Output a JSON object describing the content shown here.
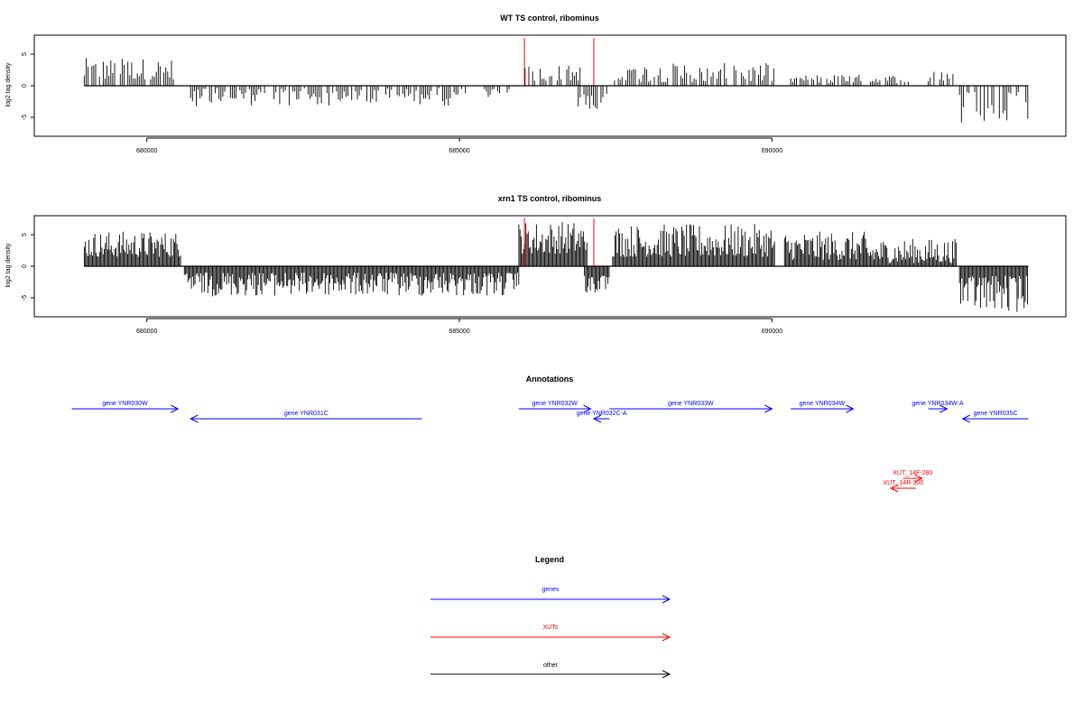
{
  "chart_data": [
    {
      "type": "bar",
      "title": "WT TS control, ribominus",
      "xlabel": "",
      "ylabel": "log2 tag density",
      "xlim": [
        678200,
        694700
      ],
      "ylim": [
        -8,
        8
      ],
      "xticks": [
        680000,
        685000,
        690000
      ],
      "xtick_labels": [
        "680000",
        "685000",
        "690000"
      ],
      "yticks": [
        -5,
        0,
        5
      ],
      "ytick_labels": [
        "-5",
        "0",
        "5"
      ],
      "marker_lines": {
        "x": [
          686040,
          687150
        ],
        "color": "#ff0000"
      },
      "segments": [
        {
          "x0": 679000,
          "x1": 680450,
          "strand": "+",
          "min": 1.0,
          "max": 4.4
        },
        {
          "x0": 680700,
          "x1": 685100,
          "strand": "-",
          "min": 0.4,
          "max": 3.2
        },
        {
          "x0": 685400,
          "x1": 685950,
          "strand": "-",
          "min": 0.5,
          "max": 1.8
        },
        {
          "x0": 686050,
          "x1": 686950,
          "strand": "+",
          "min": 0.8,
          "max": 3.3
        },
        {
          "x0": 686900,
          "x1": 687400,
          "strand": "-",
          "min": 0.8,
          "max": 3.8
        },
        {
          "x0": 687450,
          "x1": 690050,
          "strand": "+",
          "min": 0.6,
          "max": 3.6
        },
        {
          "x0": 690300,
          "x1": 692200,
          "strand": "+",
          "min": 0.4,
          "max": 1.8
        },
        {
          "x0": 692500,
          "x1": 692920,
          "strand": "+",
          "min": 0.6,
          "max": 3.2
        },
        {
          "x0": 693000,
          "x1": 694100,
          "strand": "-",
          "min": 1.0,
          "max": 6.3
        }
      ]
    },
    {
      "type": "bar",
      "title": "xrn1 TS control, ribominus",
      "xlabel": "",
      "ylabel": "log2 tag density",
      "xlim": [
        678200,
        694700
      ],
      "ylim": [
        -8,
        8
      ],
      "xticks": [
        680000,
        685000,
        690000
      ],
      "xtick_labels": [
        "680000",
        "685000",
        "690000"
      ],
      "yticks": [
        -5,
        0,
        5
      ],
      "ytick_labels": [
        "-5",
        "0",
        "5"
      ],
      "marker_lines": {
        "x": [
          686040,
          687150
        ],
        "color": "#ff0000"
      },
      "segments": [
        {
          "x0": 679000,
          "x1": 680550,
          "strand": "+",
          "min": 1.5,
          "max": 5.6
        },
        {
          "x0": 680600,
          "x1": 685950,
          "strand": "-",
          "min": 1.0,
          "max": 4.8
        },
        {
          "x0": 685950,
          "x1": 687050,
          "strand": "+",
          "min": 2.0,
          "max": 7.2
        },
        {
          "x0": 687000,
          "x1": 687400,
          "strand": "-",
          "min": 1.5,
          "max": 4.5
        },
        {
          "x0": 687450,
          "x1": 690050,
          "strand": "+",
          "min": 1.5,
          "max": 6.7
        },
        {
          "x0": 690200,
          "x1": 691500,
          "strand": "+",
          "min": 1.0,
          "max": 5.5
        },
        {
          "x0": 691500,
          "x1": 692950,
          "strand": "+",
          "min": 0.5,
          "max": 4.4
        },
        {
          "x0": 693000,
          "x1": 694100,
          "strand": "-",
          "min": 1.5,
          "max": 7.5
        }
      ]
    }
  ],
  "annotations": {
    "title": "Annotations",
    "features": [
      {
        "label": "gene YNR030W",
        "start": 678800,
        "end": 680500,
        "strand": "+",
        "row": 0,
        "type": "gene"
      },
      {
        "label": "gene YNR031C",
        "start": 680700,
        "end": 684400,
        "strand": "-",
        "row": 1,
        "type": "gene"
      },
      {
        "label": "gene YNR032W",
        "start": 685950,
        "end": 687100,
        "strand": "+",
        "row": 0,
        "type": "gene"
      },
      {
        "label": "gene YNR032C-A",
        "start": 687150,
        "end": 687400,
        "strand": "-",
        "row": 1,
        "type": "gene"
      },
      {
        "label": "gene YNR033W",
        "start": 687400,
        "end": 690000,
        "strand": "+",
        "row": 0,
        "type": "gene"
      },
      {
        "label": "gene YNR034W",
        "start": 690300,
        "end": 691300,
        "strand": "+",
        "row": 0,
        "type": "gene"
      },
      {
        "label": "gene YNR034W-A",
        "start": 692500,
        "end": 692800,
        "strand": "+",
        "row": 0,
        "type": "gene"
      },
      {
        "label": "gene YNR035C",
        "start": 693050,
        "end": 694100,
        "strand": "-",
        "row": 1,
        "type": "gene"
      },
      {
        "label": "XUT_14F-280",
        "start": 692100,
        "end": 692400,
        "strand": "+",
        "row": 7,
        "type": "XUT"
      },
      {
        "label": "XUT_14R-300",
        "start": 691900,
        "end": 692300,
        "strand": "-",
        "row": 8,
        "type": "XUT"
      }
    ]
  },
  "legend": {
    "title": "Legend",
    "items": [
      {
        "label": "genes",
        "color": "#0000ff"
      },
      {
        "label": "XUTs",
        "color": "#ff0000"
      },
      {
        "label": "other",
        "color": "#000000"
      }
    ]
  },
  "colors": {
    "gene": "#0000ff",
    "XUT": "#ff0000",
    "other": "#000000",
    "marker": "#ff0000"
  }
}
